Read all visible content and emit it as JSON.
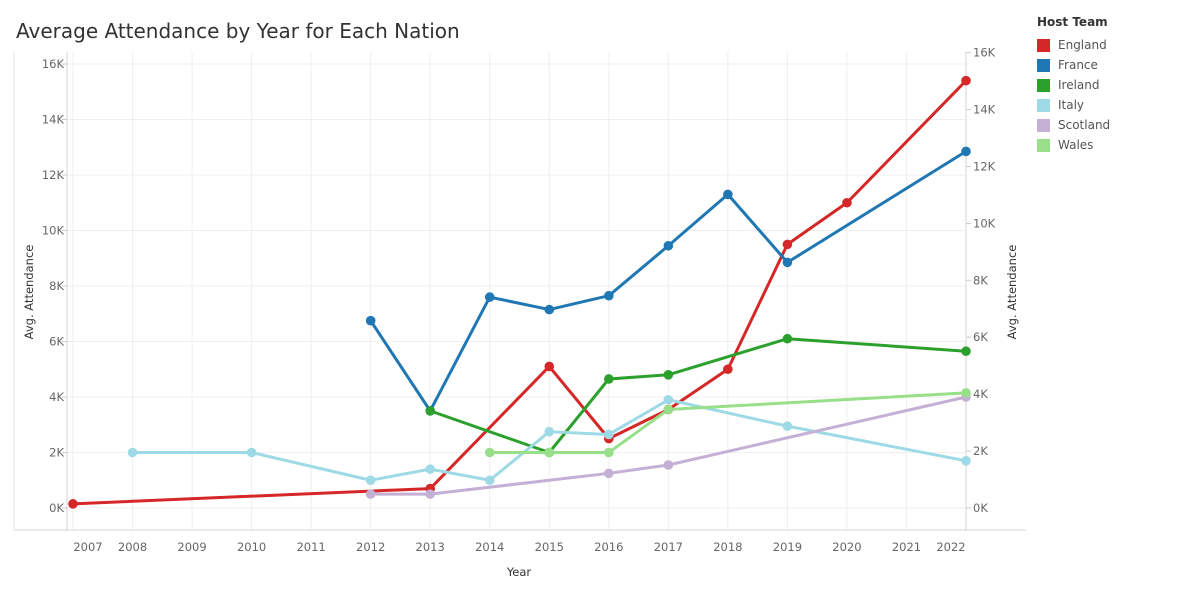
{
  "title": "Average Attendance by Year for Each Nation",
  "chart_data": {
    "type": "line",
    "title": "Average Attendance by Year for Each Nation",
    "xlabel": "Year",
    "ylabel": "Avg. Attendance",
    "ylabel_right": "Avg. Attendance",
    "xlim": [
      2007,
      2022
    ],
    "ylim": [
      0,
      16000
    ],
    "x_ticks": [
      2007,
      2008,
      2009,
      2010,
      2011,
      2012,
      2013,
      2014,
      2015,
      2016,
      2017,
      2018,
      2019,
      2020,
      2021,
      2022
    ],
    "y_ticks_left": [
      {
        "value": 0,
        "label": "0K"
      },
      {
        "value": 2000,
        "label": "2K"
      },
      {
        "value": 4000,
        "label": "4K"
      },
      {
        "value": 6000,
        "label": "6K"
      },
      {
        "value": 8000,
        "label": "8K"
      },
      {
        "value": 10000,
        "label": "10K"
      },
      {
        "value": 12000,
        "label": "12K"
      },
      {
        "value": 14000,
        "label": "14K"
      },
      {
        "value": 16000,
        "label": "16K"
      }
    ],
    "y_ticks_right": [
      {
        "value": 0,
        "label": "0K"
      },
      {
        "value": 2000,
        "label": "2K"
      },
      {
        "value": 4000,
        "label": "4K"
      },
      {
        "value": 6000,
        "label": "6K"
      },
      {
        "value": 8000,
        "label": "8K"
      },
      {
        "value": 10000,
        "label": "10K"
      },
      {
        "value": 12000,
        "label": "12K"
      },
      {
        "value": 14000,
        "label": "14K"
      },
      {
        "value": 16000,
        "label": "16K"
      }
    ],
    "right_axis_max": 15600,
    "grid": true,
    "legend": {
      "title": "Host Team",
      "placement": "right"
    },
    "series": [
      {
        "name": "England",
        "color": "#d62728",
        "points": [
          {
            "x": 2007,
            "y": 150
          },
          {
            "x": 2013,
            "y": 700
          },
          {
            "x": 2015,
            "y": 5100
          },
          {
            "x": 2016,
            "y": 2500
          },
          {
            "x": 2017,
            "y": 3550
          },
          {
            "x": 2018,
            "y": 5000
          },
          {
            "x": 2019,
            "y": 9500
          },
          {
            "x": 2020,
            "y": 11000
          },
          {
            "x": 2022,
            "y": 15400
          }
        ]
      },
      {
        "name": "France",
        "color": "#1f77b4",
        "points": [
          {
            "x": 2012,
            "y": 6750
          },
          {
            "x": 2013,
            "y": 3500
          },
          {
            "x": 2014,
            "y": 7600
          },
          {
            "x": 2015,
            "y": 7150
          },
          {
            "x": 2016,
            "y": 7650
          },
          {
            "x": 2017,
            "y": 9450
          },
          {
            "x": 2018,
            "y": 11300
          },
          {
            "x": 2019,
            "y": 8850
          },
          {
            "x": 2022,
            "y": 12850
          }
        ]
      },
      {
        "name": "Ireland",
        "color": "#2ca02c",
        "points": [
          {
            "x": 2013,
            "y": 3500
          },
          {
            "x": 2015,
            "y": 2000
          },
          {
            "x": 2016,
            "y": 4650
          },
          {
            "x": 2017,
            "y": 4800
          },
          {
            "x": 2019,
            "y": 6100
          },
          {
            "x": 2022,
            "y": 5650
          }
        ]
      },
      {
        "name": "Italy",
        "color": "#9edae5",
        "points": [
          {
            "x": 2008,
            "y": 2000
          },
          {
            "x": 2010,
            "y": 2000
          },
          {
            "x": 2012,
            "y": 1000
          },
          {
            "x": 2013,
            "y": 1400
          },
          {
            "x": 2014,
            "y": 1000
          },
          {
            "x": 2015,
            "y": 2750
          },
          {
            "x": 2016,
            "y": 2650
          },
          {
            "x": 2017,
            "y": 3900
          },
          {
            "x": 2019,
            "y": 2950
          },
          {
            "x": 2022,
            "y": 1700
          }
        ]
      },
      {
        "name": "Scotland",
        "color": "#c5b0d5",
        "points": [
          {
            "x": 2012,
            "y": 500
          },
          {
            "x": 2013,
            "y": 500
          },
          {
            "x": 2016,
            "y": 1250
          },
          {
            "x": 2017,
            "y": 1550
          },
          {
            "x": 2022,
            "y": 4000
          }
        ]
      },
      {
        "name": "Wales",
        "color": "#98df8a",
        "points": [
          {
            "x": 2014,
            "y": 2000
          },
          {
            "x": 2015,
            "y": 2000
          },
          {
            "x": 2016,
            "y": 2000
          },
          {
            "x": 2017,
            "y": 3550
          },
          {
            "x": 2022,
            "y": 4150
          }
        ]
      }
    ]
  }
}
